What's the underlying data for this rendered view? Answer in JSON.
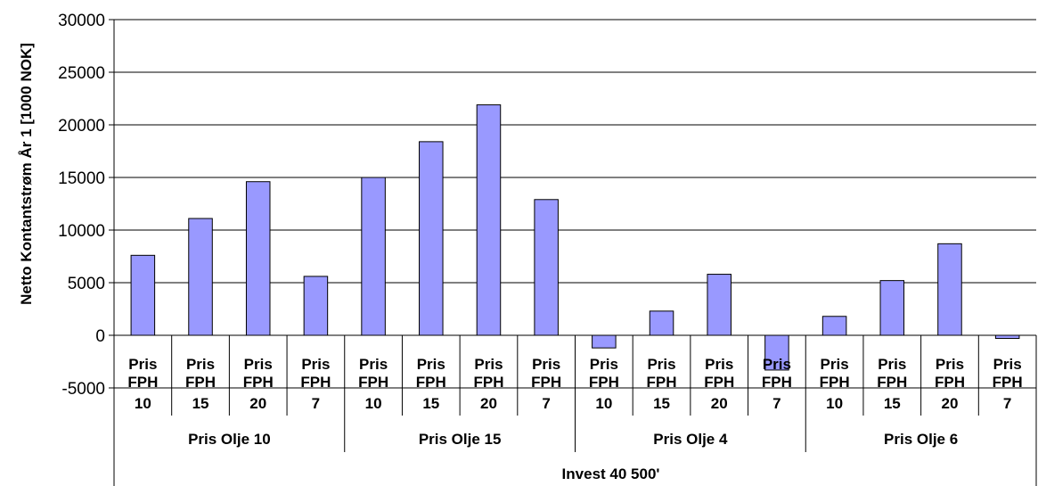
{
  "chart_data": {
    "type": "bar",
    "title": "",
    "ylabel": "Netto Kontantstrøm  År 1  [1000 NOK]",
    "xlabel": "",
    "ylim": [
      -5000,
      30000
    ],
    "yticks": [
      "30000",
      "25000",
      "20000",
      "15000",
      "10000",
      "5000",
      "0",
      "-5000"
    ],
    "grid": true,
    "legend": "none",
    "bar_color": "#9999ff",
    "category_label_line1": "Pris",
    "category_label_line2": "FPH",
    "categories": [
      "10",
      "15",
      "20",
      "7",
      "10",
      "15",
      "20",
      "7",
      "10",
      "15",
      "20",
      "7",
      "10",
      "15",
      "20",
      "7"
    ],
    "groups": [
      "Pris Olje 10",
      "Pris Olje 15",
      "Pris Olje 4",
      "Pris Olje 6"
    ],
    "outer_group": "Invest 40 500'",
    "values": [
      7600,
      11100,
      14600,
      5600,
      15000,
      18400,
      21900,
      12900,
      -1200,
      2300,
      5800,
      -3300,
      1800,
      5200,
      8700,
      -300
    ]
  }
}
